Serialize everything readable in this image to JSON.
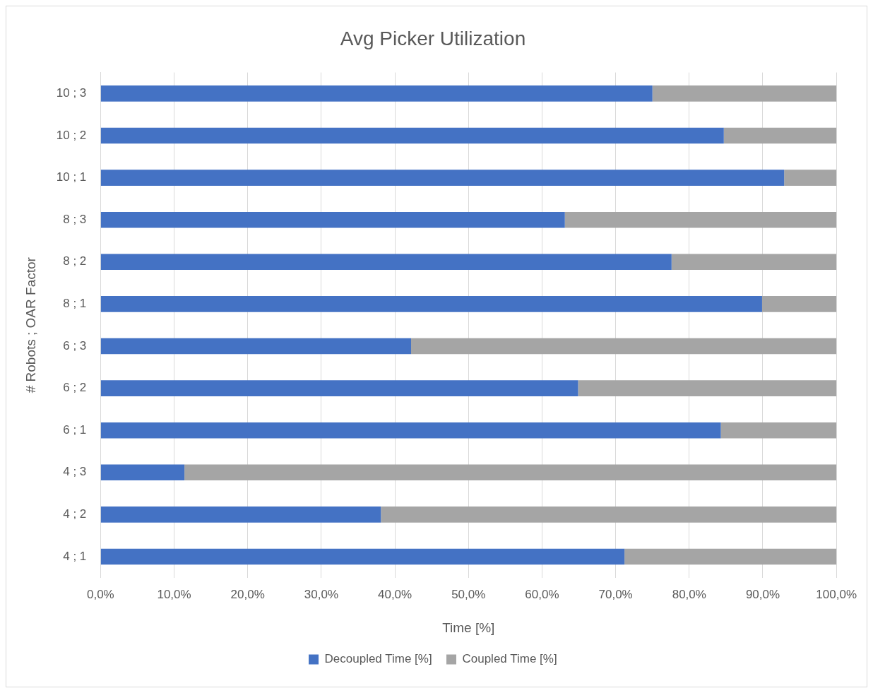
{
  "chart_data": {
    "type": "bar",
    "orientation": "horizontal",
    "stacked": true,
    "title": "Avg Picker Utilization",
    "xlabel": "Time [%]",
    "ylabel": "# Robots ; OAR Factor",
    "categories": [
      "10 ; 3",
      "10 ; 2",
      "10 ; 1",
      "8 ; 3",
      "8 ; 2",
      "8 ; 1",
      "6 ; 3",
      "6 ; 2",
      "6 ; 1",
      "4 ; 3",
      "4 ; 2",
      "4 ; 1"
    ],
    "series": [
      {
        "name": "Decoupled Time [%]",
        "color": "#4472c4",
        "values": [
          75.0,
          84.7,
          92.9,
          63.1,
          77.6,
          89.9,
          42.2,
          64.9,
          84.3,
          11.4,
          38.1,
          71.2
        ]
      },
      {
        "name": "Coupled Time [%]",
        "color": "#a5a5a5",
        "values": [
          25.0,
          15.3,
          7.1,
          36.9,
          22.4,
          10.1,
          57.8,
          35.1,
          15.7,
          88.6,
          61.9,
          28.8
        ]
      }
    ],
    "xlim": [
      0,
      100
    ],
    "xticks": [
      {
        "value": 0,
        "label": "0,0%"
      },
      {
        "value": 10,
        "label": "10,0%"
      },
      {
        "value": 20,
        "label": "20,0%"
      },
      {
        "value": 30,
        "label": "30,0%"
      },
      {
        "value": 40,
        "label": "40,0%"
      },
      {
        "value": 50,
        "label": "50,0%"
      },
      {
        "value": 60,
        "label": "60,0%"
      },
      {
        "value": 70,
        "label": "70,0%"
      },
      {
        "value": 80,
        "label": "80,0%"
      },
      {
        "value": 90,
        "label": "90,0%"
      },
      {
        "value": 100,
        "label": "100,0%"
      }
    ],
    "grid": "x",
    "legend": "bottom"
  }
}
